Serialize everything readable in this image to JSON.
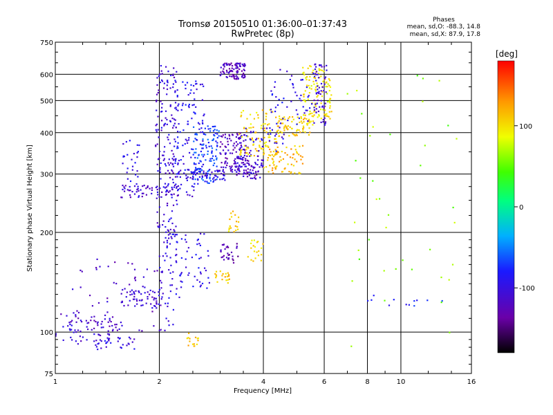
{
  "chart_data": {
    "type": "scatter",
    "title": "Tromsø 20150510 01:36:00–01:37:43",
    "subtitle": "RwPretec (8p)",
    "xlabel": "Frequency [MHz]",
    "ylabel": "Stationary phase Virtual Height [km]",
    "x_scale": "log",
    "y_scale": "log",
    "xlim": [
      1,
      16
    ],
    "ylim": [
      75,
      750
    ],
    "x_ticks": [
      "1",
      "2",
      "4",
      "6",
      "8",
      "10",
      "16"
    ],
    "y_ticks": [
      "75",
      "100",
      "200",
      "300",
      "400",
      "500",
      "600",
      "750"
    ],
    "grid": "major grid lines on",
    "phase_stats": {
      "heading": "Phases",
      "o_line": "mean, sd,O: -88.3, 14.8",
      "x_line": "mean, sd,X:  87.9, 17.8"
    },
    "colorbar": {
      "label": "[deg]",
      "ticks": [
        "100",
        "0",
        "-100"
      ],
      "range": [
        -180,
        180
      ],
      "scale": "rainbow: black → purple → blue → cyan → green → yellow → orange → red"
    },
    "clusters": [
      {
        "f_min": 1.0,
        "f_max": 1.55,
        "h_min": 92,
        "h_max": 115,
        "phase": -110,
        "n": 70,
        "shape": "band"
      },
      {
        "f_min": 1.1,
        "f_max": 2.05,
        "h_min": 100,
        "h_max": 170,
        "phase": -115,
        "n": 70,
        "shape": "band"
      },
      {
        "f_min": 1.55,
        "f_max": 2.05,
        "h_min": 118,
        "h_max": 135,
        "phase": -105,
        "n": 55,
        "shape": "band"
      },
      {
        "f_min": 1.55,
        "f_max": 1.75,
        "h_min": 270,
        "h_max": 380,
        "phase": -100,
        "n": 30,
        "shape": "band"
      },
      {
        "f_min": 1.55,
        "f_max": 2.6,
        "h_min": 255,
        "h_max": 280,
        "phase": -108,
        "n": 70,
        "shape": "band"
      },
      {
        "f_min": 1.95,
        "f_max": 2.25,
        "h_min": 200,
        "h_max": 640,
        "phase": -105,
        "n": 170,
        "shape": "column"
      },
      {
        "f_min": 2.0,
        "f_max": 2.3,
        "h_min": 100,
        "h_max": 200,
        "phase": -100,
        "n": 40,
        "shape": "column"
      },
      {
        "f_min": 2.2,
        "f_max": 2.7,
        "h_min": 300,
        "h_max": 580,
        "phase": -90,
        "n": 110,
        "shape": "band"
      },
      {
        "f_min": 2.5,
        "f_max": 3.0,
        "h_min": 280,
        "h_max": 420,
        "phase": -70,
        "n": 120,
        "shape": "band"
      },
      {
        "f_min": 2.1,
        "f_max": 2.8,
        "h_min": 135,
        "h_max": 200,
        "phase": -95,
        "n": 60,
        "shape": "band"
      },
      {
        "f_min": 2.2,
        "f_max": 3.1,
        "h_min": 285,
        "h_max": 310,
        "phase": -100,
        "n": 60,
        "shape": "band"
      },
      {
        "f_min": 3.0,
        "f_max": 3.55,
        "h_min": 580,
        "h_max": 650,
        "phase": -120,
        "n": 90,
        "shape": "blob"
      },
      {
        "f_min": 3.0,
        "f_max": 3.7,
        "h_min": 300,
        "h_max": 400,
        "phase": -120,
        "n": 120,
        "shape": "blob"
      },
      {
        "f_min": 3.0,
        "f_max": 3.4,
        "h_min": 160,
        "h_max": 185,
        "phase": -130,
        "n": 30,
        "shape": "blob"
      },
      {
        "f_min": 2.9,
        "f_max": 3.2,
        "h_min": 140,
        "h_max": 155,
        "phase": 110,
        "n": 20,
        "shape": "blob"
      },
      {
        "f_min": 3.15,
        "f_max": 3.4,
        "h_min": 200,
        "h_max": 235,
        "phase": 105,
        "n": 18,
        "shape": "blob"
      },
      {
        "f_min": 3.3,
        "f_max": 4.0,
        "h_min": 290,
        "h_max": 340,
        "phase": -110,
        "n": 70,
        "shape": "band"
      },
      {
        "f_min": 3.6,
        "f_max": 4.0,
        "h_min": 160,
        "h_max": 190,
        "phase": 100,
        "n": 20,
        "shape": "blob"
      },
      {
        "f_min": 3.4,
        "f_max": 4.4,
        "h_min": 340,
        "h_max": 470,
        "phase": 105,
        "n": 100,
        "shape": "band"
      },
      {
        "f_min": 4.0,
        "f_max": 5.2,
        "h_min": 300,
        "h_max": 370,
        "phase": 115,
        "n": 70,
        "shape": "band"
      },
      {
        "f_min": 4.4,
        "f_max": 5.6,
        "h_min": 390,
        "h_max": 450,
        "phase": 110,
        "n": 80,
        "shape": "band"
      },
      {
        "f_min": 5.2,
        "f_max": 6.3,
        "h_min": 440,
        "h_max": 640,
        "phase": 95,
        "n": 110,
        "shape": "column"
      },
      {
        "f_min": 5.6,
        "f_max": 6.1,
        "h_min": 420,
        "h_max": 650,
        "phase": -110,
        "n": 60,
        "shape": "column"
      },
      {
        "f_min": 4.2,
        "f_max": 5.6,
        "h_min": 420,
        "h_max": 630,
        "phase": -95,
        "n": 50,
        "shape": "band"
      },
      {
        "f_min": 3.4,
        "f_max": 4.6,
        "h_min": 350,
        "h_max": 420,
        "phase": -100,
        "n": 40,
        "shape": "band"
      },
      {
        "f_min": 2.4,
        "f_max": 2.6,
        "h_min": 90,
        "h_max": 100,
        "phase": 110,
        "n": 15,
        "shape": "blob"
      },
      {
        "f_min": 1.3,
        "f_max": 1.7,
        "h_min": 88,
        "h_max": 97,
        "phase": -100,
        "n": 30,
        "shape": "band"
      },
      {
        "f_min": 7.0,
        "f_max": 14.5,
        "h_min": 90,
        "h_max": 600,
        "phase": 60,
        "n": 40,
        "shape": "sparse"
      },
      {
        "f_min": 8.0,
        "f_max": 13.5,
        "h_min": 120,
        "h_max": 130,
        "phase": -80,
        "n": 12,
        "shape": "band"
      }
    ]
  }
}
